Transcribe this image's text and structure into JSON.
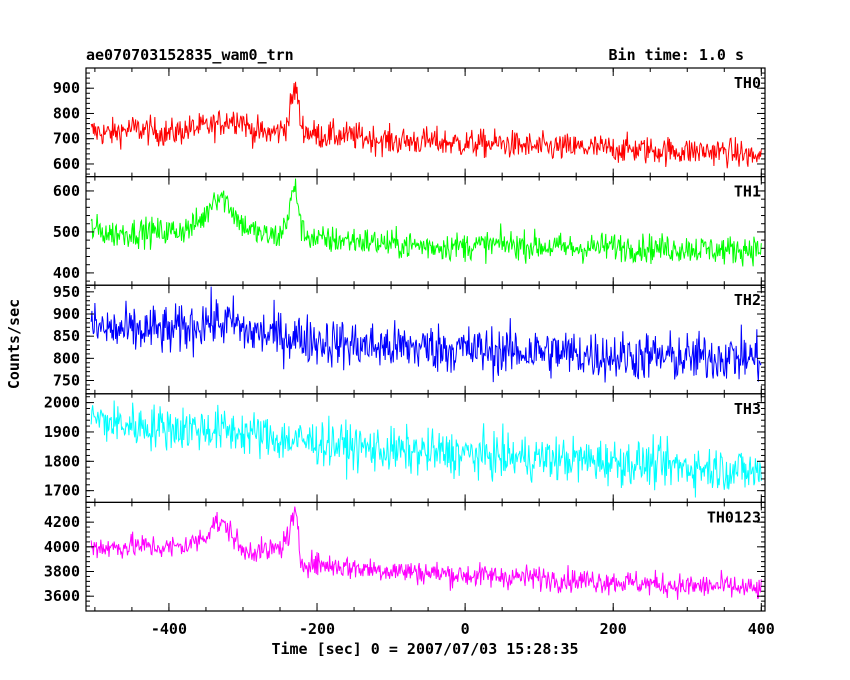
{
  "chart_data": {
    "type": "line",
    "title_left": "ae070703152835_wam0_trn",
    "title_right": "Bin time: 1.0 s",
    "xlabel": "Time [sec] 0 = 2007/07/03 15:28:35",
    "ylabel": "Counts/sec",
    "xlim": [
      -512,
      405
    ],
    "x_ticks": [
      -400,
      -200,
      0,
      200,
      400
    ],
    "panels": [
      {
        "name": "TH0",
        "color": "#ff0000",
        "ylim": [
          550,
          980
        ],
        "y_ticks": [
          600,
          700,
          800,
          900
        ],
        "points": [
          [
            -505,
            730
          ],
          [
            -480,
            720
          ],
          [
            -450,
            740
          ],
          [
            -420,
            730
          ],
          [
            -400,
            720
          ],
          [
            -370,
            740
          ],
          [
            -340,
            750
          ],
          [
            -320,
            775
          ],
          [
            -305,
            780
          ],
          [
            -300,
            770
          ],
          [
            -290,
            735
          ],
          [
            -270,
            720
          ],
          [
            -250,
            730
          ],
          [
            -240,
            760
          ],
          [
            -232,
            880
          ],
          [
            -228,
            900
          ],
          [
            -222,
            760
          ],
          [
            -215,
            730
          ],
          [
            -200,
            715
          ],
          [
            -150,
            710
          ],
          [
            -100,
            690
          ],
          [
            -50,
            690
          ],
          [
            0,
            680
          ],
          [
            50,
            680
          ],
          [
            100,
            665
          ],
          [
            150,
            665
          ],
          [
            200,
            660
          ],
          [
            250,
            655
          ],
          [
            300,
            650
          ],
          [
            350,
            650
          ],
          [
            400,
            625
          ]
        ],
        "noise": 40
      },
      {
        "name": "TH1",
        "color": "#00ff00",
        "ylim": [
          370,
          635
        ],
        "y_ticks": [
          400,
          500,
          600
        ],
        "points": [
          [
            -505,
            510
          ],
          [
            -480,
            495
          ],
          [
            -440,
            500
          ],
          [
            -400,
            500
          ],
          [
            -370,
            510
          ],
          [
            -350,
            540
          ],
          [
            -340,
            585
          ],
          [
            -330,
            590
          ],
          [
            -320,
            570
          ],
          [
            -305,
            525
          ],
          [
            -290,
            505
          ],
          [
            -270,
            490
          ],
          [
            -250,
            490
          ],
          [
            -238,
            545
          ],
          [
            -232,
            605
          ],
          [
            -228,
            600
          ],
          [
            -220,
            500
          ],
          [
            -200,
            480
          ],
          [
            -150,
            480
          ],
          [
            -100,
            470
          ],
          [
            -50,
            465
          ],
          [
            0,
            465
          ],
          [
            50,
            470
          ],
          [
            100,
            465
          ],
          [
            150,
            460
          ],
          [
            200,
            465
          ],
          [
            250,
            460
          ],
          [
            300,
            460
          ],
          [
            350,
            455
          ],
          [
            400,
            460
          ]
        ],
        "noise": 25
      },
      {
        "name": "TH2",
        "color": "#0000ff",
        "ylim": [
          720,
          965
        ],
        "y_ticks": [
          750,
          800,
          850,
          900,
          950
        ],
        "points": [
          [
            -505,
            870
          ],
          [
            -480,
            865
          ],
          [
            -450,
            860
          ],
          [
            -420,
            865
          ],
          [
            -400,
            860
          ],
          [
            -370,
            870
          ],
          [
            -350,
            885
          ],
          [
            -330,
            880
          ],
          [
            -310,
            880
          ],
          [
            -300,
            860
          ],
          [
            -270,
            855
          ],
          [
            -240,
            850
          ],
          [
            -200,
            840
          ],
          [
            -150,
            830
          ],
          [
            -100,
            825
          ],
          [
            -50,
            825
          ],
          [
            0,
            820
          ],
          [
            50,
            815
          ],
          [
            100,
            815
          ],
          [
            150,
            810
          ],
          [
            200,
            805
          ],
          [
            250,
            805
          ],
          [
            300,
            800
          ],
          [
            350,
            805
          ],
          [
            400,
            800
          ]
        ],
        "noise": 40
      },
      {
        "name": "TH3",
        "color": "#00ffff",
        "ylim": [
          1660,
          2030
        ],
        "y_ticks": [
          1700,
          1800,
          1900,
          2000
        ],
        "points": [
          [
            -505,
            1950
          ],
          [
            -480,
            1930
          ],
          [
            -440,
            1920
          ],
          [
            -400,
            1915
          ],
          [
            -350,
            1910
          ],
          [
            -300,
            1900
          ],
          [
            -250,
            1875
          ],
          [
            -200,
            1865
          ],
          [
            -150,
            1850
          ],
          [
            -100,
            1835
          ],
          [
            -50,
            1830
          ],
          [
            0,
            1825
          ],
          [
            50,
            1815
          ],
          [
            100,
            1810
          ],
          [
            150,
            1805
          ],
          [
            200,
            1800
          ],
          [
            250,
            1790
          ],
          [
            300,
            1780
          ],
          [
            350,
            1775
          ],
          [
            400,
            1760
          ]
        ],
        "noise": 55
      },
      {
        "name": "TH0123",
        "color": "#ff00ff",
        "ylim": [
          3480,
          4360
        ],
        "y_ticks": [
          3600,
          3800,
          4000,
          4200
        ],
        "points": [
          [
            -505,
            4010
          ],
          [
            -480,
            3990
          ],
          [
            -450,
            4010
          ],
          [
            -420,
            4000
          ],
          [
            -400,
            3990
          ],
          [
            -370,
            4020
          ],
          [
            -350,
            4090
          ],
          [
            -340,
            4200
          ],
          [
            -330,
            4180
          ],
          [
            -320,
            4150
          ],
          [
            -310,
            4060
          ],
          [
            -300,
            3950
          ],
          [
            -290,
            3980
          ],
          [
            -270,
            3960
          ],
          [
            -250,
            3990
          ],
          [
            -238,
            4100
          ],
          [
            -232,
            4250
          ],
          [
            -228,
            4230
          ],
          [
            -222,
            3880
          ],
          [
            -200,
            3860
          ],
          [
            -150,
            3830
          ],
          [
            -100,
            3810
          ],
          [
            -50,
            3790
          ],
          [
            0,
            3770
          ],
          [
            50,
            3760
          ],
          [
            100,
            3750
          ],
          [
            150,
            3730
          ],
          [
            200,
            3720
          ],
          [
            250,
            3700
          ],
          [
            300,
            3680
          ],
          [
            350,
            3680
          ],
          [
            400,
            3650
          ]
        ],
        "noise": 70
      }
    ]
  }
}
